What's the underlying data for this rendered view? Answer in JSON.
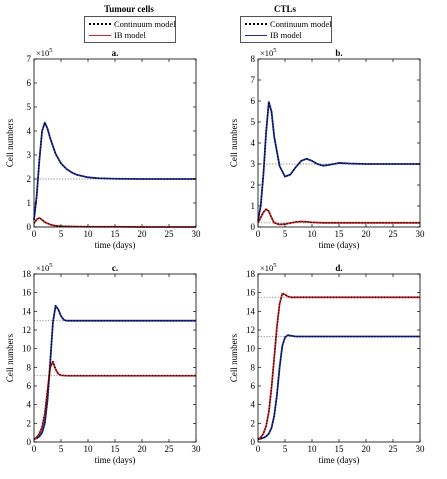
{
  "legends": [
    {
      "title": "Tumour cells",
      "entries": [
        {
          "label": "Continuum model",
          "style": "dotted",
          "color": "#000000"
        },
        {
          "label": "IB model",
          "style": "solid",
          "color": "#d62728"
        }
      ]
    },
    {
      "title": "CTLs",
      "entries": [
        {
          "label": "Continuum model",
          "style": "dotted",
          "color": "#000000"
        },
        {
          "label": "IB model",
          "style": "solid",
          "color": "#1f2fa8"
        }
      ]
    }
  ],
  "colors": {
    "tumour": "#d62728",
    "ctl": "#1f2fa8",
    "continuum": "#000000",
    "steady": "#888888"
  },
  "chart_data": [
    {
      "type": "line",
      "title": "a.",
      "xlabel": "time (days)",
      "ylabel": "Cell numbers",
      "exponent": "×10",
      "exponent_power": "5",
      "xlim": [
        0,
        30
      ],
      "ylim": [
        0,
        7
      ],
      "xticks": [
        0,
        5,
        10,
        15,
        20,
        25,
        30
      ],
      "yticks": [
        0,
        1,
        2,
        3,
        4,
        5,
        6,
        7
      ],
      "steady_states": [
        2.0,
        0.0
      ],
      "series": [
        {
          "key": "ctl",
          "x": [
            0,
            0.5,
            1,
            1.5,
            2,
            2.5,
            3,
            4,
            5,
            6,
            7,
            8,
            10,
            12,
            15,
            20,
            25,
            30
          ],
          "y": [
            0.3,
            1.3,
            2.8,
            4.0,
            4.35,
            4.1,
            3.7,
            3.05,
            2.65,
            2.42,
            2.27,
            2.17,
            2.07,
            2.03,
            2.01,
            2.0,
            2.0,
            2.0
          ]
        },
        {
          "key": "tumour",
          "x": [
            0,
            0.5,
            1,
            1.5,
            2,
            3,
            4,
            5,
            7,
            10,
            15,
            20,
            25,
            30
          ],
          "y": [
            0.15,
            0.32,
            0.38,
            0.3,
            0.2,
            0.1,
            0.05,
            0.03,
            0.02,
            0.01,
            0.01,
            0.0,
            0.0,
            0.0
          ]
        }
      ]
    },
    {
      "type": "line",
      "title": "b.",
      "xlabel": "time (days)",
      "ylabel": "Cell numbers",
      "exponent": "×10",
      "exponent_power": "5",
      "xlim": [
        0,
        30
      ],
      "ylim": [
        0,
        8
      ],
      "xticks": [
        0,
        5,
        10,
        15,
        20,
        25,
        30
      ],
      "yticks": [
        0,
        1,
        2,
        3,
        4,
        5,
        6,
        7,
        8
      ],
      "steady_states": [
        3.0,
        0.2
      ],
      "series": [
        {
          "key": "ctl",
          "x": [
            0,
            0.5,
            1,
            1.5,
            2,
            2.5,
            3,
            4,
            5,
            6,
            7,
            8,
            9,
            10,
            11,
            12,
            13,
            15,
            17,
            20,
            25,
            30
          ],
          "y": [
            0.3,
            1.0,
            2.5,
            4.5,
            5.95,
            5.5,
            4.3,
            2.9,
            2.4,
            2.5,
            2.85,
            3.15,
            3.25,
            3.15,
            3.0,
            2.92,
            2.95,
            3.05,
            3.02,
            3.0,
            3.0,
            3.0
          ]
        },
        {
          "key": "tumour",
          "x": [
            0,
            0.5,
            1,
            1.5,
            2,
            2.5,
            3,
            4,
            5,
            6,
            7,
            8,
            9,
            10,
            12,
            15,
            20,
            25,
            30
          ],
          "y": [
            0.2,
            0.45,
            0.7,
            0.85,
            0.75,
            0.45,
            0.2,
            0.12,
            0.14,
            0.19,
            0.24,
            0.26,
            0.25,
            0.22,
            0.2,
            0.2,
            0.2,
            0.2,
            0.2
          ]
        }
      ]
    },
    {
      "type": "line",
      "title": "c.",
      "xlabel": "time (days)",
      "ylabel": "Cell numbers",
      "exponent": "×10",
      "exponent_power": "5",
      "xlim": [
        0,
        30
      ],
      "ylim": [
        0,
        18
      ],
      "xticks": [
        0,
        5,
        10,
        15,
        20,
        25,
        30
      ],
      "yticks": [
        0,
        2,
        4,
        6,
        8,
        10,
        12,
        14,
        16,
        18
      ],
      "steady_states": [
        13.0,
        7.1
      ],
      "series": [
        {
          "key": "ctl",
          "x": [
            0,
            0.5,
            1,
            1.5,
            2,
            2.5,
            3,
            3.5,
            4,
            4.5,
            5,
            5.5,
            6,
            7,
            8,
            10,
            15,
            20,
            25,
            30
          ],
          "y": [
            0.3,
            0.4,
            0.6,
            1.0,
            2.0,
            4.5,
            8.5,
            12.8,
            14.6,
            14.2,
            13.5,
            13.1,
            13.0,
            13.0,
            13.0,
            13.0,
            13.0,
            13.0,
            13.0,
            13.0
          ]
        },
        {
          "key": "tumour",
          "x": [
            0,
            0.5,
            1,
            1.5,
            2,
            2.5,
            3,
            3.5,
            4,
            4.5,
            5,
            6,
            7,
            8,
            10,
            15,
            20,
            25,
            30
          ],
          "y": [
            0.3,
            0.5,
            0.9,
            1.6,
            3.0,
            5.5,
            8.0,
            8.6,
            7.8,
            7.3,
            7.15,
            7.1,
            7.1,
            7.1,
            7.1,
            7.1,
            7.1,
            7.1,
            7.1
          ]
        }
      ]
    },
    {
      "type": "line",
      "title": "d.",
      "xlabel": "time (days)",
      "ylabel": "Cell numbers",
      "exponent": "×10",
      "exponent_power": "5",
      "xlim": [
        0,
        30
      ],
      "ylim": [
        0,
        18
      ],
      "xticks": [
        0,
        5,
        10,
        15,
        20,
        25,
        30
      ],
      "yticks": [
        0,
        2,
        4,
        6,
        8,
        10,
        12,
        14,
        16,
        18
      ],
      "steady_states": [
        15.5,
        11.3
      ],
      "series": [
        {
          "key": "ctl",
          "x": [
            0,
            0.5,
            1,
            1.5,
            2,
            2.5,
            3,
            3.5,
            4,
            4.5,
            5,
            5.5,
            6,
            7,
            8,
            10,
            15,
            20,
            25,
            30
          ],
          "y": [
            0.3,
            0.35,
            0.45,
            0.6,
            0.9,
            1.5,
            2.8,
            5.0,
            8.0,
            10.3,
            11.2,
            11.45,
            11.4,
            11.3,
            11.3,
            11.3,
            11.3,
            11.3,
            11.3,
            11.3
          ]
        },
        {
          "key": "tumour",
          "x": [
            0,
            0.5,
            1,
            1.5,
            2,
            2.5,
            3,
            3.5,
            4,
            4.5,
            5,
            5.5,
            6,
            7,
            8,
            10,
            15,
            20,
            25,
            30
          ],
          "y": [
            0.3,
            0.5,
            0.9,
            1.7,
            3.2,
            5.8,
            9.0,
            12.3,
            14.8,
            15.9,
            15.8,
            15.6,
            15.5,
            15.5,
            15.5,
            15.5,
            15.5,
            15.5,
            15.5,
            15.5
          ]
        }
      ]
    }
  ]
}
